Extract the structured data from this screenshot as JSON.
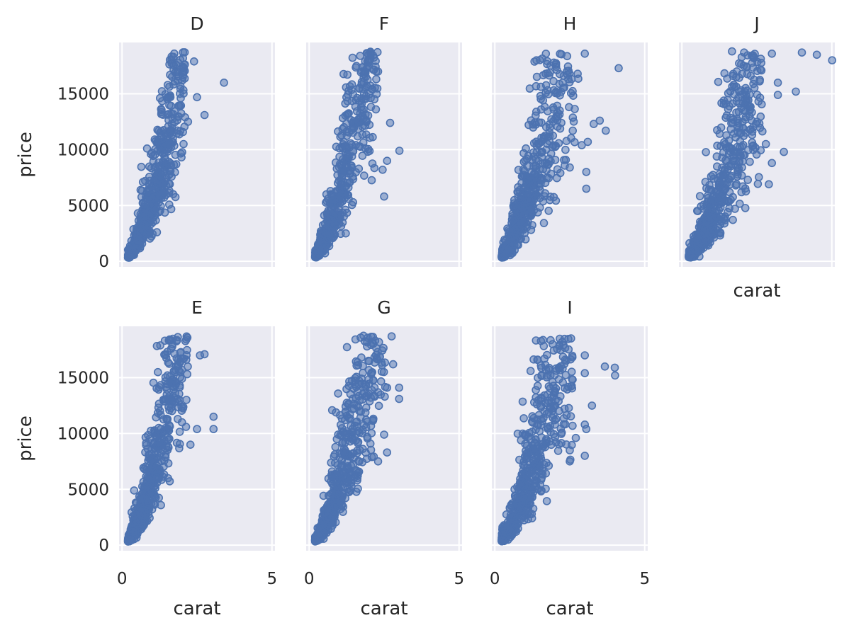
{
  "chart_data": {
    "type": "scatter",
    "xlabel": "carat",
    "ylabel": "price",
    "xlim": [
      -0.1,
      5.1
    ],
    "ylim": [
      -500,
      19600
    ],
    "xticks": [
      0,
      5
    ],
    "yticks": [
      0,
      5000,
      10000,
      15000
    ],
    "grid": true,
    "marker": "hollow-circle",
    "color": "#4c72b0",
    "panel_bg": "#eaeaf2",
    "panels": [
      {
        "title": "D",
        "trend": {
          "k": 5600,
          "p": 1.65,
          "xmin": 0.2,
          "xmax": 2.1
        },
        "scatter_spread": 0.35,
        "outliers": [
          [
            2.5,
            14700
          ],
          [
            2.75,
            13100
          ],
          [
            3.4,
            16000
          ],
          [
            2.4,
            17900
          ],
          [
            2.2,
            12500
          ],
          [
            2.1,
            12900
          ],
          [
            2.05,
            10500
          ]
        ]
      },
      {
        "title": "F",
        "trend": {
          "k": 6400,
          "p": 1.7,
          "xmin": 0.2,
          "xmax": 2.3
        },
        "scatter_spread": 0.38,
        "outliers": [
          [
            3.01,
            9900
          ],
          [
            2.7,
            12400
          ],
          [
            2.6,
            9000
          ],
          [
            2.45,
            8200
          ],
          [
            2.5,
            5800
          ],
          [
            2.3,
            17000
          ]
        ]
      },
      {
        "title": "H",
        "trend": {
          "k": 4900,
          "p": 1.65,
          "xmin": 0.23,
          "xmax": 2.8
        },
        "scatter_spread": 0.4,
        "outliers": [
          [
            4.13,
            17300
          ],
          [
            3.5,
            12600
          ],
          [
            3.7,
            11700
          ],
          [
            3.3,
            12300
          ],
          [
            3.1,
            10700
          ],
          [
            3.05,
            8000
          ],
          [
            3.05,
            6500
          ],
          [
            2.9,
            10400
          ],
          [
            2.6,
            11700
          ],
          [
            2.5,
            8400
          ],
          [
            3.0,
            18600
          ]
        ]
      },
      {
        "title": "J",
        "trend": {
          "k": 4200,
          "p": 1.6,
          "xmin": 0.23,
          "xmax": 2.7
        },
        "scatter_spread": 0.42,
        "outliers": [
          [
            5.01,
            18000
          ],
          [
            4.5,
            18500
          ],
          [
            4.0,
            18700
          ],
          [
            3.8,
            15200
          ],
          [
            3.2,
            16000
          ],
          [
            3.2,
            14900
          ],
          [
            3.4,
            9800
          ],
          [
            3.0,
            8800
          ],
          [
            2.8,
            10500
          ],
          [
            2.9,
            6900
          ],
          [
            3.0,
            18600
          ]
        ]
      },
      {
        "title": "E",
        "trend": {
          "k": 6300,
          "p": 1.7,
          "xmin": 0.2,
          "xmax": 2.2
        },
        "scatter_spread": 0.36,
        "outliers": [
          [
            3.05,
            11500
          ],
          [
            3.05,
            10400
          ],
          [
            2.5,
            10400
          ],
          [
            2.28,
            9000
          ],
          [
            2.6,
            17000
          ],
          [
            2.75,
            17100
          ],
          [
            2.0,
            11000
          ]
        ]
      },
      {
        "title": "G",
        "trend": {
          "k": 5600,
          "p": 1.65,
          "xmin": 0.2,
          "xmax": 2.6
        },
        "scatter_spread": 0.38,
        "outliers": [
          [
            3.0,
            14100
          ],
          [
            3.0,
            13100
          ],
          [
            2.75,
            18700
          ],
          [
            2.5,
            9900
          ],
          [
            2.6,
            8300
          ],
          [
            2.3,
            7500
          ],
          [
            2.8,
            16200
          ],
          [
            2.6,
            14100
          ]
        ]
      },
      {
        "title": "I",
        "trend": {
          "k": 5100,
          "p": 1.65,
          "xmin": 0.23,
          "xmax": 2.6
        },
        "scatter_spread": 0.4,
        "outliers": [
          [
            4.0,
            15900
          ],
          [
            4.01,
            15200
          ],
          [
            3.67,
            16000
          ],
          [
            3.24,
            12500
          ],
          [
            3.0,
            10800
          ],
          [
            3.05,
            10400
          ],
          [
            3.0,
            8000
          ],
          [
            2.7,
            9600
          ],
          [
            2.5,
            8500
          ],
          [
            2.5,
            7500
          ],
          [
            3.0,
            15400
          ],
          [
            3.0,
            17000
          ]
        ]
      }
    ]
  }
}
